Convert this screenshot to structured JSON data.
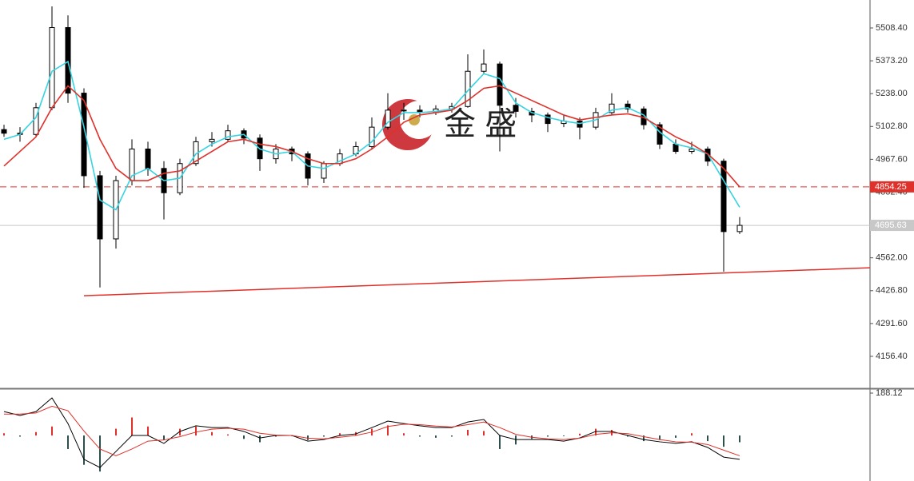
{
  "chart_data": [
    {
      "type": "candlestick",
      "ylim": [
        4024.8,
        5623.5
      ],
      "yticks": [
        {
          "value": 5508.4,
          "label": "5508.40"
        },
        {
          "value": 5373.2,
          "label": "5373.20"
        },
        {
          "value": 5238,
          "label": "5238.00"
        },
        {
          "value": 5102.8,
          "label": "5102.80"
        },
        {
          "value": 4967.6,
          "label": "4967.60"
        },
        {
          "value": 4832.4,
          "label": "4832.40"
        },
        {
          "value": 4562,
          "label": "4562.00"
        },
        {
          "value": 4426.8,
          "label": "4426.80"
        },
        {
          "value": 4291.6,
          "label": "4291.60"
        },
        {
          "value": 4156.4,
          "label": "4156.40"
        }
      ],
      "open": [
        5090,
        5075,
        5070,
        5180,
        5510,
        5240,
        4900,
        4640,
        4880,
        5010,
        4930,
        4830,
        4950,
        5040,
        5050,
        5085,
        5055,
        4970,
        5010,
        4990,
        4890,
        4950,
        4990,
        5020,
        5100,
        5168,
        5170,
        5160,
        5175,
        5185,
        5330,
        5360,
        5190,
        5165,
        5150,
        5115,
        5125,
        5100,
        5160,
        5195,
        5175,
        5110,
        5030,
        5000,
        5010,
        4960,
        4670
      ],
      "high": [
        5110,
        5100,
        5200,
        5597,
        5560,
        5260,
        4920,
        4900,
        5050,
        5040,
        4960,
        4970,
        5060,
        5080,
        5110,
        5095,
        5070,
        5030,
        5020,
        5000,
        4960,
        5010,
        5040,
        5140,
        5240,
        5200,
        5190,
        5190,
        5200,
        5400,
        5420,
        5370,
        5220,
        5180,
        5160,
        5150,
        5140,
        5180,
        5240,
        5210,
        5185,
        5120,
        5050,
        5040,
        5020,
        4970,
        4730
      ],
      "low": [
        5060,
        5040,
        5060,
        5170,
        5200,
        4850,
        4440,
        4600,
        4860,
        4900,
        4720,
        4820,
        4940,
        5020,
        5040,
        5030,
        4920,
        4950,
        4960,
        4860,
        4870,
        4940,
        4980,
        5010,
        5090,
        5130,
        5140,
        5150,
        5160,
        5180,
        5320,
        5000,
        5140,
        5120,
        5080,
        5100,
        5050,
        5090,
        5150,
        5160,
        5090,
        5010,
        4990,
        4990,
        4940,
        4505,
        4660
      ],
      "close": [
        5075,
        5070,
        5180,
        5510,
        5240,
        4900,
        4640,
        4880,
        5010,
        4930,
        4830,
        4950,
        5040,
        5050,
        5085,
        5055,
        4970,
        5010,
        4990,
        4890,
        4950,
        4990,
        5020,
        5100,
        5170,
        5170,
        5160,
        5175,
        5185,
        5330,
        5360,
        5190,
        5165,
        5150,
        5115,
        5125,
        5100,
        5160,
        5195,
        5175,
        5110,
        5030,
        5000,
        5010,
        4960,
        4670,
        4695.63
      ],
      "overlays": [
        {
          "color": "#35d4e0",
          "values": [
            5050,
            5070,
            5140,
            5330,
            5370,
            5100,
            4800,
            4760,
            4900,
            4930,
            4880,
            4890,
            4990,
            5030,
            5060,
            5070,
            5010,
            4990,
            5000,
            4940,
            4930,
            4960,
            4990,
            5040,
            5120,
            5160,
            5160,
            5165,
            5175,
            5250,
            5320,
            5300,
            5200,
            5160,
            5140,
            5125,
            5115,
            5130,
            5170,
            5180,
            5150,
            5080,
            5030,
            5015,
            4990,
            4880,
            4770
          ]
        },
        {
          "color": "#e0302a",
          "values": [
            4940,
            5000,
            5060,
            5180,
            5270,
            5210,
            5050,
            4930,
            4880,
            4880,
            4910,
            4920,
            4960,
            5000,
            5040,
            5050,
            5030,
            5020,
            5000,
            4970,
            4950,
            4950,
            4970,
            5010,
            5060,
            5120,
            5150,
            5160,
            5170,
            5210,
            5260,
            5270,
            5240,
            5210,
            5180,
            5150,
            5130,
            5140,
            5150,
            5155,
            5140,
            5100,
            5060,
            5030,
            4990,
            4930,
            4854
          ]
        }
      ],
      "price_lines": [
        {
          "value": 4854.25,
          "color": "#e0302a",
          "dashed": true
        },
        {
          "value": 4695.63,
          "color": "#c8c8c8",
          "dashed": false
        }
      ],
      "trendline": [
        4406,
        4521
      ],
      "trend_color": "#e0302a",
      "watermark": "金 盛"
    },
    {
      "type": "macd",
      "ylim": [
        -202,
        188.12
      ],
      "yticks": [
        188.12
      ],
      "histogram": [
        10,
        -5,
        15,
        40,
        -60,
        -130,
        -160,
        30,
        80,
        40,
        -20,
        30,
        40,
        15,
        5,
        -15,
        -30,
        -5,
        -3,
        -20,
        -5,
        10,
        15,
        30,
        45,
        10,
        -5,
        -10,
        -5,
        25,
        20,
        -60,
        -40,
        -15,
        -5,
        -3,
        8,
        30,
        25,
        -5,
        -25,
        -20,
        -10,
        10,
        -25,
        -50,
        -30
      ],
      "colors": {
        "up": "#e0302a",
        "down": "#2f4f4f"
      },
      "lines": [
        {
          "color": "#000000",
          "values": [
            106,
            89,
            106,
            167,
            53,
            -106,
            -142,
            -71,
            0,
            0,
            -35,
            18,
            43,
            35,
            35,
            18,
            -11,
            0,
            0,
            -25,
            -18,
            0,
            7,
            35,
            64,
            53,
            43,
            35,
            35,
            60,
            71,
            0,
            -18,
            -18,
            -18,
            -25,
            -11,
            18,
            18,
            0,
            -18,
            -28,
            -35,
            -28,
            -53,
            -96,
            -106
          ]
        },
        {
          "color": "#e0302a",
          "values": [
            95,
            95,
            100,
            130,
            110,
            20,
            -60,
            -90,
            -60,
            -25,
            -20,
            -5,
            15,
            28,
            32,
            28,
            10,
            2,
            0,
            -12,
            -15,
            -8,
            0,
            15,
            40,
            50,
            48,
            42,
            38,
            48,
            60,
            35,
            5,
            -8,
            -15,
            -18,
            -12,
            5,
            12,
            8,
            -5,
            -18,
            -28,
            -30,
            -40,
            -65,
            -90
          ]
        }
      ]
    }
  ]
}
